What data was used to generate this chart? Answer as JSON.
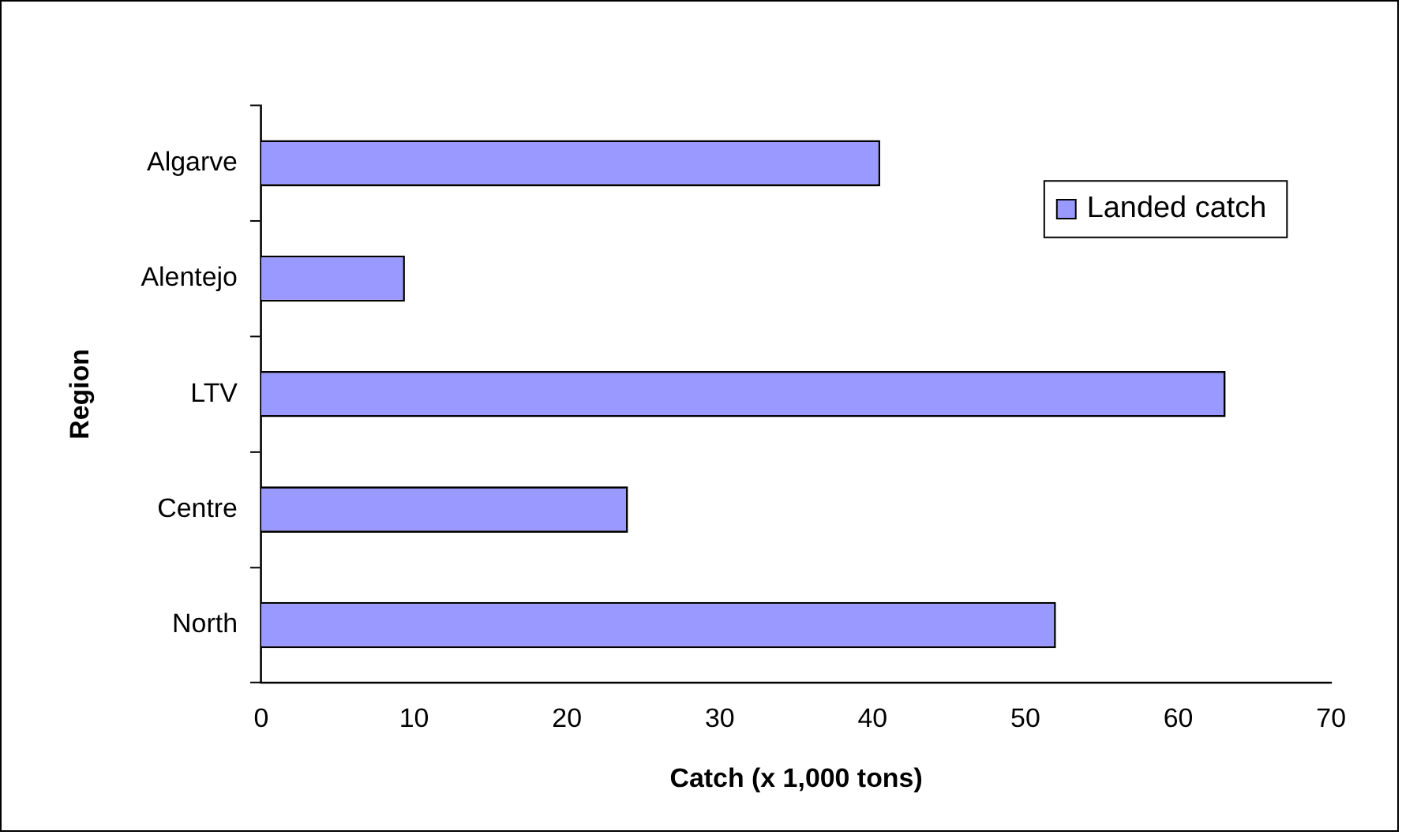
{
  "chart_data": {
    "type": "bar",
    "orientation": "horizontal",
    "categories": [
      "Algarve",
      "Alentejo",
      "LTV",
      "Centre",
      "North"
    ],
    "series": [
      {
        "name": "Landed catch",
        "color": "#9999ff",
        "values": [
          40.5,
          9.4,
          63.1,
          24.0,
          52.0
        ]
      }
    ],
    "xlabel": "Catch (x 1,000 tons)",
    "ylabel": "Region",
    "xlim": [
      0,
      70
    ],
    "xticks": [
      0,
      10,
      20,
      30,
      40,
      50,
      60,
      70
    ],
    "grid": false,
    "legend": "top right"
  }
}
